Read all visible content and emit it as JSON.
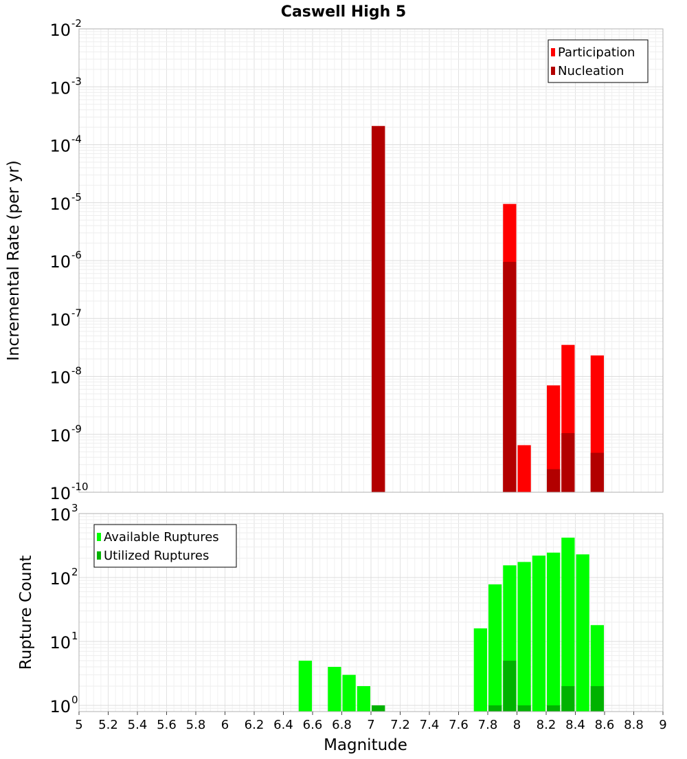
{
  "chart_data": [
    {
      "type": "bar",
      "title": "Caswell High 5",
      "ylabel": "Incremental Rate (per yr)",
      "xlabel": "",
      "xlim": [
        5,
        9
      ],
      "ylim": [
        1e-10,
        0.01
      ],
      "yscale": "log",
      "ytick_exponents": [
        "-2",
        "-3",
        "-4",
        "-5",
        "-6",
        "-7",
        "-8",
        "-9",
        "-10"
      ],
      "ytick_base": "10",
      "bin_width": 0.1,
      "legend_position": "top-right",
      "colors": {
        "participation": "#ff0000",
        "nucleation": "#b20000"
      },
      "series": [
        {
          "name": "Participation",
          "color": "#ff0000",
          "points": [
            {
              "x": 7.05,
              "y": 0.00021
            },
            {
              "x": 7.95,
              "y": 9.5e-06
            },
            {
              "x": 8.05,
              "y": 6.5e-10
            },
            {
              "x": 8.25,
              "y": 7e-09
            },
            {
              "x": 8.35,
              "y": 3.5e-08
            },
            {
              "x": 8.55,
              "y": 2.3e-08
            }
          ]
        },
        {
          "name": "Nucleation",
          "color": "#b20000",
          "points": [
            {
              "x": 7.05,
              "y": 0.00021
            },
            {
              "x": 7.95,
              "y": 9.5e-07
            },
            {
              "x": 8.25,
              "y": 2.5e-10
            },
            {
              "x": 8.35,
              "y": 1.05e-09
            },
            {
              "x": 8.55,
              "y": 4.8e-10
            }
          ]
        }
      ]
    },
    {
      "type": "bar",
      "title": "",
      "ylabel": "Rupture Count",
      "xlabel": "Magnitude",
      "xlim": [
        5,
        9
      ],
      "ylim": [
        0.8,
        1000
      ],
      "yscale": "log",
      "ytick_exponents": [
        "3",
        "2",
        "1",
        "0"
      ],
      "ytick_base": "10",
      "xticks": [
        "5",
        "5.2",
        "5.4",
        "5.6",
        "5.8",
        "6",
        "6.2",
        "6.4",
        "6.6",
        "6.8",
        "7",
        "7.2",
        "7.4",
        "7.6",
        "7.8",
        "8",
        "8.2",
        "8.4",
        "8.6",
        "8.8",
        "9"
      ],
      "bin_width": 0.1,
      "legend_position": "top-left",
      "colors": {
        "available": "#00ff00",
        "utilized": "#00b200"
      },
      "series": [
        {
          "name": "Available Ruptures",
          "color": "#00ff00",
          "points": [
            {
              "x": 6.55,
              "y": 5
            },
            {
              "x": 6.75,
              "y": 4
            },
            {
              "x": 6.85,
              "y": 3
            },
            {
              "x": 6.95,
              "y": 2
            },
            {
              "x": 7.05,
              "y": 1
            },
            {
              "x": 7.75,
              "y": 16
            },
            {
              "x": 7.85,
              "y": 78
            },
            {
              "x": 7.95,
              "y": 155
            },
            {
              "x": 8.05,
              "y": 175
            },
            {
              "x": 8.15,
              "y": 220
            },
            {
              "x": 8.25,
              "y": 245
            },
            {
              "x": 8.35,
              "y": 420
            },
            {
              "x": 8.45,
              "y": 230
            },
            {
              "x": 8.55,
              "y": 18
            }
          ]
        },
        {
          "name": "Utilized Ruptures",
          "color": "#00b200",
          "points": [
            {
              "x": 7.05,
              "y": 1
            },
            {
              "x": 7.85,
              "y": 1
            },
            {
              "x": 7.95,
              "y": 5
            },
            {
              "x": 8.05,
              "y": 1
            },
            {
              "x": 8.25,
              "y": 1
            },
            {
              "x": 8.35,
              "y": 2
            },
            {
              "x": 8.55,
              "y": 2
            }
          ]
        }
      ]
    }
  ]
}
